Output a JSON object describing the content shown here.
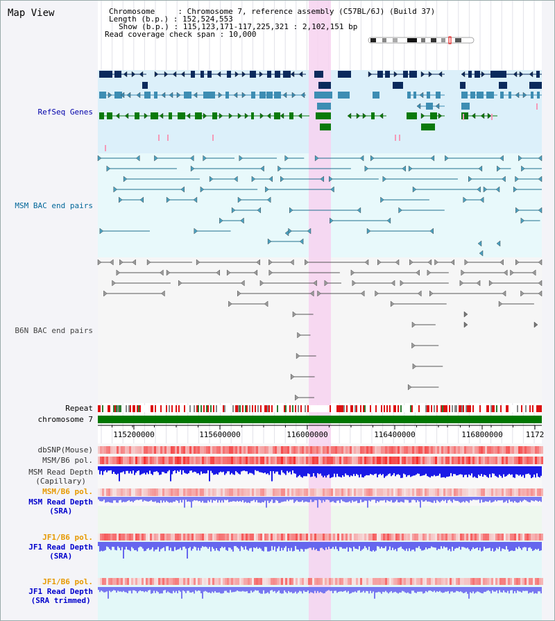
{
  "title": "Map View",
  "header": {
    "line1": "Chromosome     : Chromosome 7, reference assembly (C57BL/6J) (Build 37)",
    "line2": "Length (b.p.) : 152,524,553",
    "line3": "Show (b.p.) : 115,123,171-117,225,321 : 2,102,151 bp",
    "line4": "Read coverage check span : 10,000"
  },
  "tracks": {
    "refseq": "RefSeq Genes",
    "msm_bac": "MSM BAC end pairs",
    "b6n_bac": "B6N BAC end pairs",
    "repeat": "Repeat",
    "chromosome": "chromosome 7",
    "dbsnp": "dbSNP(Mouse)",
    "msm_b6_pol": "MSM/B6 pol.",
    "msm_depth_cap_1": "MSM Read Depth",
    "msm_depth_cap_2": "(Capillary)",
    "msm_b6_pol_2": "MSM/B6 pol.",
    "msm_depth_sra_1": "MSM Read Depth",
    "msm_depth_sra_2": "(SRA)",
    "jf1_b6_pol": "JF1/B6 pol.",
    "jf1_depth_sra_1": "JF1 Read Depth",
    "jf1_depth_sra_2": "(SRA)",
    "jf1_b6_pol_2": "JF1/B6 pol.",
    "jf1_depth_trim_1": "JF1 Read Depth",
    "jf1_depth_trim_2": "(SRA trimmed)"
  },
  "axis": {
    "ticks": [
      "115200000",
      "115600000",
      "116000000",
      "116400000",
      "116800000",
      "1172"
    ]
  },
  "colors": {
    "refseq_label": "#0000aa",
    "msm_label": "#006699",
    "b6n_label": "#444444",
    "orange_label": "#e69900",
    "blue_label": "#0000cc",
    "highlight": "#f7d2f0",
    "chromosome": "#007700"
  },
  "icons": {
    "ideogram": "chromosome-ideogram-icon"
  }
}
